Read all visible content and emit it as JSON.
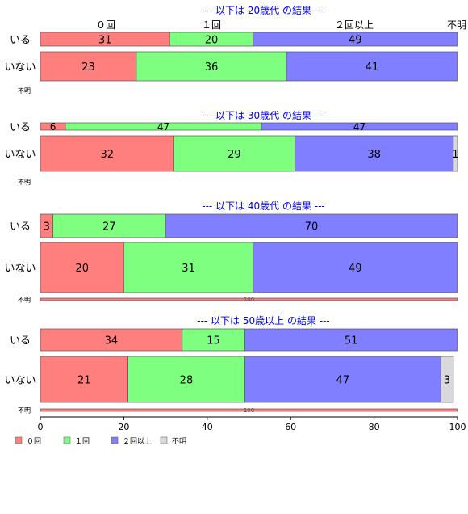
{
  "chart_data": {
    "type": "bar",
    "orientation": "horizontal",
    "stacked": true,
    "percent": true,
    "xlim": [
      0,
      100
    ],
    "x_ticks": [
      "0",
      "20",
      "40",
      "60",
      "80",
      "100"
    ],
    "categories": [
      "０回",
      "１回",
      "２回以上",
      "不明"
    ],
    "category_colors": [
      "#ff7f7f",
      "#7fff7f",
      "#7f7fff",
      "#d9d9d9"
    ],
    "top_labels": [
      "０回",
      "１回",
      "２回以上",
      "不明"
    ],
    "legend_position": "bottom-left",
    "groups": [
      {
        "title": "--- 以下は 20歳代 の結果 ---",
        "rows": [
          {
            "label": "いる",
            "values": [
              31,
              20,
              49,
              0
            ]
          },
          {
            "label": "いない",
            "values": [
              23,
              36,
              41,
              0
            ]
          },
          {
            "label": "不明",
            "values": [
              0,
              0,
              0,
              0
            ]
          }
        ]
      },
      {
        "title": "--- 以下は 30歳代 の結果 ---",
        "rows": [
          {
            "label": "いる",
            "values": [
              6,
              47,
              47,
              0
            ]
          },
          {
            "label": "いない",
            "values": [
              32,
              29,
              38,
              1
            ]
          },
          {
            "label": "不明",
            "values": [
              0,
              0,
              0,
              0
            ]
          }
        ]
      },
      {
        "title": "--- 以下は 40歳代 の結果 ---",
        "rows": [
          {
            "label": "いる",
            "values": [
              3,
              27,
              70,
              0
            ]
          },
          {
            "label": "いない",
            "values": [
              20,
              31,
              49,
              0
            ]
          },
          {
            "label": "不明",
            "values": [
              100,
              0,
              0,
              0
            ]
          }
        ]
      },
      {
        "title": "--- 以下は 50歳以上 の結果 ---",
        "rows": [
          {
            "label": "いる",
            "values": [
              34,
              15,
              51,
              0
            ]
          },
          {
            "label": "いない",
            "values": [
              21,
              28,
              47,
              3
            ]
          },
          {
            "label": "不明",
            "values": [
              100,
              0,
              0,
              0
            ]
          }
        ]
      }
    ]
  }
}
